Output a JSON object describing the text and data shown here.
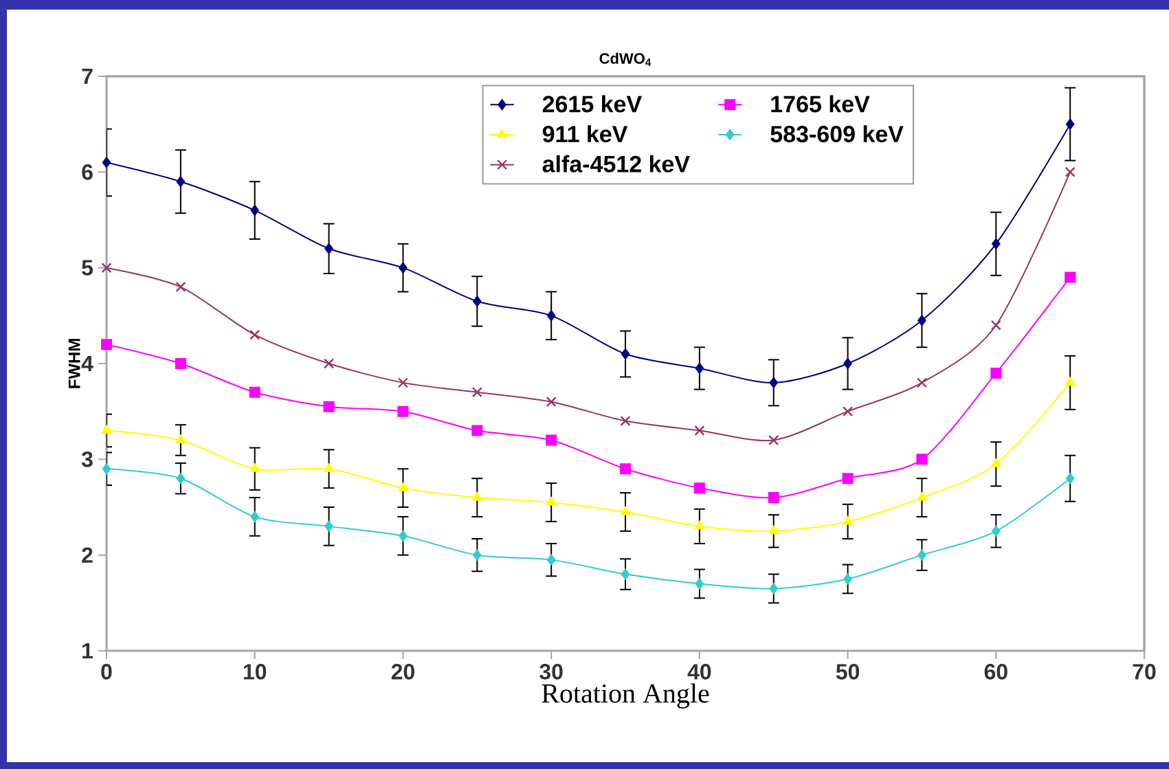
{
  "chart_data": {
    "type": "line",
    "title": "CdWO$_{4}$",
    "xlabel": "Rotation  Angle",
    "ylabel": "FWHM",
    "x": [
      0,
      5,
      10,
      15,
      20,
      25,
      30,
      35,
      40,
      45,
      50,
      55,
      60,
      65
    ],
    "series": [
      {
        "name": "2615 keV",
        "color": "#000080",
        "marker": "diamond",
        "values": [
          6.1,
          5.9,
          5.6,
          5.2,
          5.0,
          4.65,
          4.5,
          4.1,
          3.95,
          3.8,
          4.0,
          4.45,
          5.25,
          6.5
        ],
        "errors": [
          0.35,
          0.33,
          0.3,
          0.26,
          0.25,
          0.26,
          0.25,
          0.24,
          0.22,
          0.24,
          0.27,
          0.28,
          0.33,
          0.38
        ]
      },
      {
        "name": "1765 keV",
        "color": "#ff00ff",
        "marker": "square",
        "values": [
          4.2,
          4.0,
          3.7,
          3.55,
          3.5,
          3.3,
          3.2,
          2.9,
          2.7,
          2.6,
          2.8,
          3.0,
          3.9,
          4.9
        ]
      },
      {
        "name": "911 keV",
        "color": "#ffff00",
        "marker": "triangle",
        "values": [
          3.3,
          3.2,
          2.9,
          2.9,
          2.7,
          2.6,
          2.55,
          2.45,
          2.3,
          2.25,
          2.35,
          2.6,
          2.95,
          3.8
        ],
        "errors": [
          0.17,
          0.16,
          0.22,
          0.2,
          0.2,
          0.2,
          0.2,
          0.2,
          0.18,
          0.17,
          0.18,
          0.2,
          0.23,
          0.28
        ]
      },
      {
        "name": "583-609 keV",
        "color": "#33cccc",
        "marker": "diamond",
        "values": [
          2.9,
          2.8,
          2.4,
          2.3,
          2.2,
          2.0,
          1.95,
          1.8,
          1.7,
          1.65,
          1.75,
          2.0,
          2.25,
          2.8
        ],
        "errors": [
          0.17,
          0.16,
          0.2,
          0.2,
          0.2,
          0.17,
          0.17,
          0.16,
          0.15,
          0.15,
          0.15,
          0.16,
          0.17,
          0.24
        ]
      },
      {
        "name": "alfa-4512 keV",
        "color": "#993366",
        "marker": "cross",
        "values": [
          5.0,
          4.8,
          4.3,
          4.0,
          3.8,
          3.7,
          3.6,
          3.4,
          3.3,
          3.2,
          3.5,
          3.8,
          4.4,
          6.0
        ]
      }
    ],
    "xlim": [
      0,
      70
    ],
    "ylim": [
      1,
      7
    ],
    "xticks": [
      0,
      10,
      20,
      30,
      40,
      50,
      60,
      70
    ],
    "yticks": [
      1,
      2,
      3,
      4,
      5,
      6,
      7
    ],
    "legend": "top"
  }
}
